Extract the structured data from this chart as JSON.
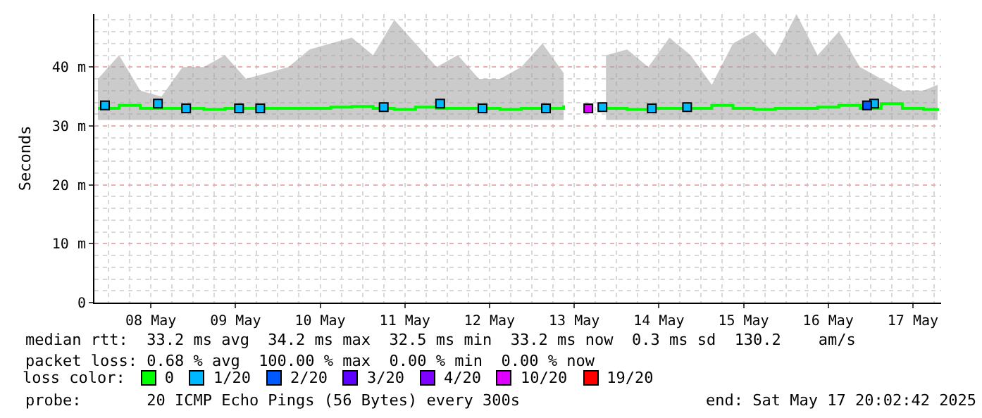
{
  "chart_data": {
    "type": "line",
    "ylabel": "Seconds",
    "legend_title": "loss color:",
    "legend": "bottom",
    "grid": true,
    "xlim": [
      "2025-05-07T20:00",
      "2025-05-17T20:00"
    ],
    "xticks": [
      {
        "value": "2025-05-08T12:00",
        "label": "08 May"
      },
      {
        "value": "2025-05-09T12:00",
        "label": "09 May"
      },
      {
        "value": "2025-05-10T12:00",
        "label": "10 May"
      },
      {
        "value": "2025-05-11T12:00",
        "label": "11 May"
      },
      {
        "value": "2025-05-12T12:00",
        "label": "12 May"
      },
      {
        "value": "2025-05-13T12:00",
        "label": "13 May"
      },
      {
        "value": "2025-05-14T12:00",
        "label": "14 May"
      },
      {
        "value": "2025-05-15T12:00",
        "label": "15 May"
      },
      {
        "value": "2025-05-16T12:00",
        "label": "16 May"
      },
      {
        "value": "2025-05-17T12:00",
        "label": "17 May"
      }
    ],
    "ylim": [
      0,
      49
    ],
    "yticks": [
      {
        "value": 0,
        "label": "0"
      },
      {
        "value": 10,
        "label": "10 m"
      },
      {
        "value": 20,
        "label": "20 m"
      },
      {
        "value": 30,
        "label": "30 m"
      },
      {
        "value": 40,
        "label": "40 m"
      }
    ],
    "series": [
      {
        "name": "0",
        "color": "#00ff00",
        "x": [
          "2025-05-07T21:00",
          "2025-05-08T03:00",
          "2025-05-08T09:00",
          "2025-05-08T15:00",
          "2025-05-08T21:00",
          "2025-05-09T03:00",
          "2025-05-09T09:00",
          "2025-05-09T15:00",
          "2025-05-09T21:00",
          "2025-05-10T03:00",
          "2025-05-10T09:00",
          "2025-05-10T15:00",
          "2025-05-10T21:00",
          "2025-05-11T03:00",
          "2025-05-11T09:00",
          "2025-05-11T15:00",
          "2025-05-11T21:00",
          "2025-05-12T03:00",
          "2025-05-12T09:00",
          "2025-05-12T15:00",
          "2025-05-12T21:00",
          "2025-05-13T03:00",
          "2025-05-13T09:00",
          "2025-05-13T17:30",
          "2025-05-13T21:00",
          "2025-05-14T03:00",
          "2025-05-14T09:00",
          "2025-05-14T15:00",
          "2025-05-14T21:00",
          "2025-05-15T03:00",
          "2025-05-15T09:00",
          "2025-05-15T15:00",
          "2025-05-15T21:00",
          "2025-05-16T03:00",
          "2025-05-16T09:00",
          "2025-05-16T15:00",
          "2025-05-16T21:00",
          "2025-05-17T03:00",
          "2025-05-17T09:00",
          "2025-05-17T15:00",
          "2025-05-17T19:00"
        ],
        "values": [
          33,
          33.5,
          33,
          33,
          33,
          32.8,
          33,
          33,
          33,
          33,
          33,
          33.2,
          33.3,
          33,
          32.8,
          33.2,
          33,
          33,
          33,
          32.8,
          33,
          33,
          33.5,
          null,
          33,
          32.8,
          33,
          33,
          33,
          33.5,
          33,
          32.8,
          33,
          33,
          33.2,
          33.5,
          33,
          33.8,
          33,
          32.8,
          33
        ],
        "lower": [
          31,
          31,
          31,
          31,
          31,
          31,
          31,
          31,
          31,
          31,
          31,
          31,
          31,
          31,
          31,
          31,
          31,
          31,
          31,
          31,
          31,
          31,
          31,
          null,
          31,
          31,
          31,
          31,
          31,
          31,
          31,
          31,
          31,
          31,
          31,
          31,
          31,
          31,
          31,
          31,
          31
        ],
        "upper": [
          38,
          42,
          36,
          35,
          40,
          40,
          42,
          38,
          39,
          40,
          43,
          44,
          45,
          42,
          48,
          44,
          40,
          42,
          38,
          38,
          40,
          44,
          39,
          null,
          42,
          43,
          40,
          45,
          42,
          37,
          44,
          46,
          42,
          49,
          42,
          46,
          40,
          38,
          36,
          36,
          37
        ]
      },
      {
        "name": "1/20",
        "color": "#00b8ff",
        "type": "scatter",
        "x": [
          "2025-05-07T23:00",
          "2025-05-08T14:00",
          "2025-05-08T22:00",
          "2025-05-09T13:00",
          "2025-05-09T19:00",
          "2025-05-11T06:00",
          "2025-05-11T22:00",
          "2025-05-12T10:00",
          "2025-05-13T04:00",
          "2025-05-13T20:00",
          "2025-05-14T10:00",
          "2025-05-14T20:00",
          "2025-05-17T01:00"
        ],
        "values": [
          33.5,
          33.8,
          33,
          33,
          33,
          33.2,
          33.8,
          33,
          33,
          33.2,
          33,
          33.2,
          33.8
        ]
      },
      {
        "name": "2/20",
        "color": "#0059ff",
        "type": "scatter",
        "x": [
          "2025-05-16T23:00"
        ],
        "values": [
          33.5
        ]
      },
      {
        "name": "3/20",
        "color": "#5e00ff",
        "type": "scatter"
      },
      {
        "name": "4/20",
        "color": "#7e00ff",
        "type": "scatter"
      },
      {
        "name": "10/20",
        "color": "#dd00ff",
        "type": "scatter",
        "x": [
          "2025-05-13T16:00"
        ],
        "values": [
          33
        ]
      },
      {
        "name": "19/20",
        "color": "#ff0000",
        "type": "scatter"
      }
    ],
    "annotations": [
      "median rtt:  33.2 ms avg  34.2 ms max  32.5 ms min  33.2 ms now  0.3 ms sd  130.2    am/s",
      "packet loss: 0.68 % avg  100.00 % max  0.00 % min  0.00 % now",
      "probe:       20 ICMP Echo Pings (56 Bytes) every 300s",
      "end: Sat May 17 20:02:42 2025"
    ]
  }
}
